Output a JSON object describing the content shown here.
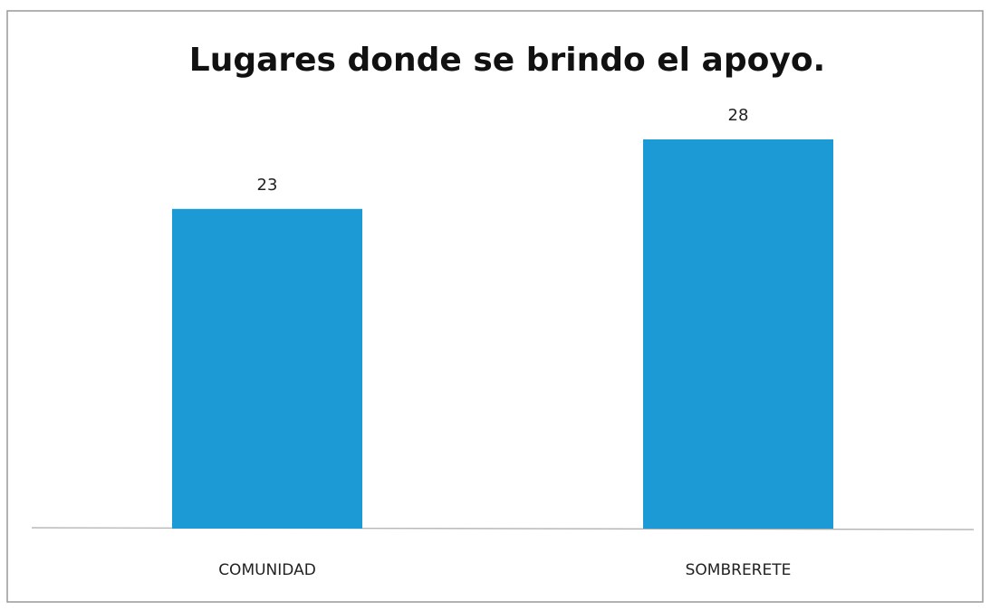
{
  "chart_data": {
    "type": "bar",
    "title": "Lugares donde se brindo el apoyo.",
    "categories": [
      "COMUNIDAD",
      "SOMBRERETE"
    ],
    "values": [
      23,
      28
    ],
    "color": "#1b9ad6"
  }
}
